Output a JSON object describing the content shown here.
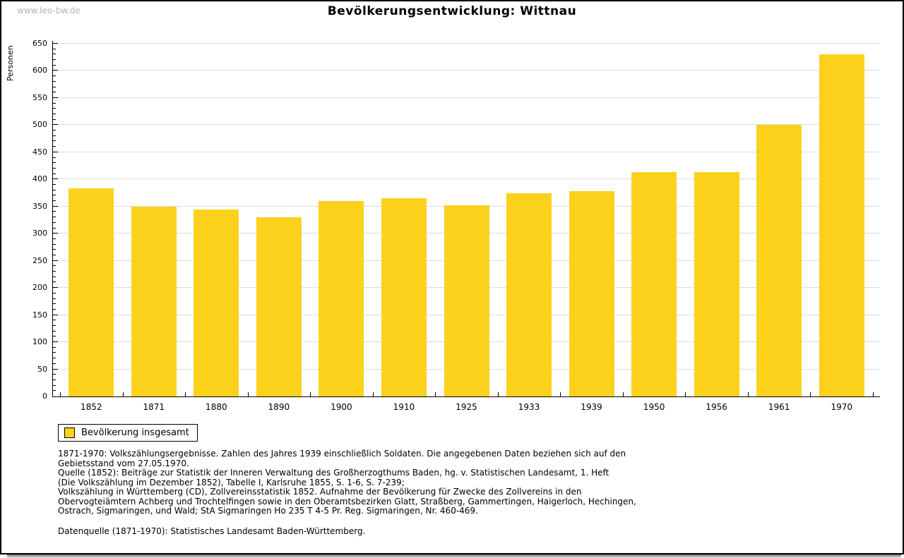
{
  "page": {
    "watermark": "www.leo-bw.de",
    "title": "Bevölkerungsentwicklung: Wittnau"
  },
  "chart_data": {
    "type": "bar",
    "title": "Bevölkerungsentwicklung: Wittnau",
    "xlabel": "",
    "ylabel": "Personen",
    "categories": [
      "1852",
      "1871",
      "1880",
      "1890",
      "1900",
      "1910",
      "1925",
      "1933",
      "1939",
      "1950",
      "1956",
      "1961",
      "1970"
    ],
    "values": [
      383,
      350,
      345,
      330,
      360,
      365,
      352,
      374,
      378,
      413,
      413,
      500,
      631
    ],
    "ylim": [
      0,
      650
    ],
    "ytick_step": 50,
    "minor_tick_step": 10,
    "grid": true,
    "bar_color": "#fcd11c",
    "legend": {
      "label": "Bevölkerung insgesamt",
      "position": "bottom-left"
    }
  },
  "colors": {
    "bar": "#fcd11c",
    "gridline": "#dcdcdc",
    "axis": "#000000",
    "watermark": "#b4b4b4",
    "background": "#ffffff"
  },
  "footnotes": {
    "lines": [
      "1871-1970: Volkszählungsergebnisse. Zahlen des Jahres 1939 einschließlich Soldaten. Die angegebenen Daten beziehen sich auf den",
      "Gebietsstand vom 27.05.1970.",
      "Quelle (1852): Beiträge zur Statistik der Inneren Verwaltung des Großherzogthums Baden, hg. v. Statistischen Landesamt, 1. Heft",
      "(Die Volkszählung im Dezember 1852), Tabelle I, Karlsruhe 1855, S. 1-6, S. 7-239;",
      "Volkszählung in Württemberg (CD), Zollvereinsstatistik 1852. Aufnahme der Bevölkerung für Zwecke des Zollvereins in den",
      "Obervogteiämtern Achberg und Trochtelfingen sowie in den Oberamtsbezirken Glatt, Straßberg, Gammertingen, Haigerloch, Hechingen,",
      "Ostrach, Sigmaringen, und Wald; StA Sigmaringen Ho 235 T 4-5 Pr. Reg. Sigmaringen, Nr. 460-469."
    ],
    "datasource": "Datenquelle (1871-1970): Statistisches Landesamt Baden-Württemberg."
  }
}
